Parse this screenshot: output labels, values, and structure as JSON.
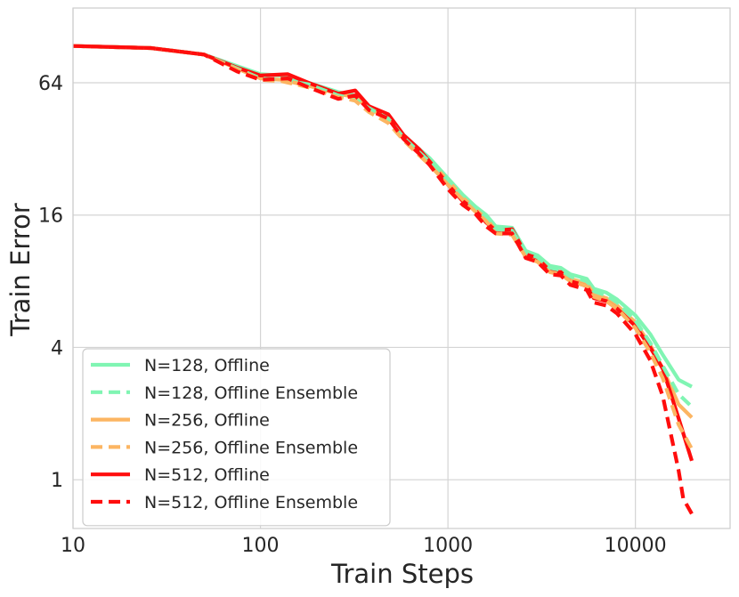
{
  "chart_data": {
    "type": "line",
    "title": "",
    "xlabel": "Train Steps",
    "ylabel": "Train Error",
    "x_scale": "log",
    "y_scale": "log2",
    "xlim": [
      10,
      32000
    ],
    "ylim": [
      0.6,
      140
    ],
    "xticks": [
      10,
      100,
      1000,
      10000
    ],
    "xtick_labels": [
      "10",
      "100",
      "1000",
      "10000"
    ],
    "yticks": [
      1,
      4,
      16,
      64
    ],
    "ytick_labels": [
      "1",
      "4",
      "16",
      "64"
    ],
    "grid": true,
    "legend_position": "lower-left",
    "series": [
      {
        "name": "N=128, Offline",
        "color": "#80f5b3",
        "dash": "solid",
        "points": [
          [
            10,
            94
          ],
          [
            26,
            92
          ],
          [
            50,
            86
          ],
          [
            100,
            70
          ],
          [
            130,
            69
          ],
          [
            180,
            64
          ],
          [
            260,
            58
          ],
          [
            320,
            56
          ],
          [
            380,
            50
          ],
          [
            480,
            45
          ],
          [
            580,
            37
          ],
          [
            700,
            32
          ],
          [
            800,
            29
          ],
          [
            1000,
            23.5
          ],
          [
            1200,
            19.8
          ],
          [
            1400,
            17.5
          ],
          [
            1600,
            16
          ],
          [
            1800,
            14.2
          ],
          [
            2200,
            14
          ],
          [
            2600,
            11
          ],
          [
            3000,
            10.5
          ],
          [
            3500,
            9.4
          ],
          [
            4000,
            9.2
          ],
          [
            4500,
            8.6
          ],
          [
            5000,
            8.4
          ],
          [
            5500,
            8.2
          ],
          [
            6000,
            7.4
          ],
          [
            7000,
            7.1
          ],
          [
            8000,
            6.6
          ],
          [
            10000,
            5.6
          ],
          [
            12000,
            4.6
          ],
          [
            14000,
            3.7
          ],
          [
            17000,
            2.85
          ],
          [
            20000,
            2.65
          ]
        ]
      },
      {
        "name": "N=128, Offline Ensemble",
        "color": "#80f5b3",
        "dash": "dashed",
        "points": [
          [
            10,
            94
          ],
          [
            26,
            92
          ],
          [
            50,
            86
          ],
          [
            100,
            67
          ],
          [
            130,
            66
          ],
          [
            180,
            63
          ],
          [
            260,
            56
          ],
          [
            320,
            54
          ],
          [
            380,
            49
          ],
          [
            480,
            44
          ],
          [
            580,
            36
          ],
          [
            700,
            31
          ],
          [
            800,
            28
          ],
          [
            1000,
            23
          ],
          [
            1200,
            19.4
          ],
          [
            1400,
            17.2
          ],
          [
            1600,
            15.6
          ],
          [
            1800,
            13.8
          ],
          [
            2200,
            13.6
          ],
          [
            2600,
            10.8
          ],
          [
            3000,
            10.3
          ],
          [
            3500,
            9.2
          ],
          [
            4000,
            9
          ],
          [
            4500,
            8.4
          ],
          [
            5000,
            8.2
          ],
          [
            5500,
            8
          ],
          [
            6000,
            7.2
          ],
          [
            7000,
            6.9
          ],
          [
            8000,
            6.4
          ],
          [
            10000,
            5.3
          ],
          [
            12000,
            4.2
          ],
          [
            14000,
            3.3
          ],
          [
            17000,
            2.45
          ],
          [
            20000,
            2.15
          ]
        ]
      },
      {
        "name": "N=256, Offline",
        "color": "#fcb562",
        "dash": "solid",
        "points": [
          [
            10,
            94
          ],
          [
            26,
            92
          ],
          [
            50,
            86
          ],
          [
            100,
            67
          ],
          [
            130,
            66
          ],
          [
            180,
            62
          ],
          [
            260,
            57
          ],
          [
            320,
            55
          ],
          [
            380,
            49
          ],
          [
            480,
            44
          ],
          [
            580,
            36
          ],
          [
            700,
            31
          ],
          [
            800,
            28
          ],
          [
            1000,
            23
          ],
          [
            1200,
            19.2
          ],
          [
            1400,
            17
          ],
          [
            1600,
            15.4
          ],
          [
            1800,
            13.6
          ],
          [
            2200,
            13.4
          ],
          [
            2600,
            10.6
          ],
          [
            3000,
            10.1
          ],
          [
            3500,
            9
          ],
          [
            4000,
            8.8
          ],
          [
            4500,
            8.2
          ],
          [
            5000,
            8
          ],
          [
            5500,
            7.8
          ],
          [
            6000,
            7
          ],
          [
            7000,
            6.7
          ],
          [
            8000,
            6.2
          ],
          [
            10000,
            5.2
          ],
          [
            12000,
            4.1
          ],
          [
            14000,
            3.2
          ],
          [
            17000,
            2.2
          ],
          [
            20000,
            1.92
          ]
        ]
      },
      {
        "name": "N=256, Offline Ensemble",
        "color": "#fcb562",
        "dash": "dashed",
        "points": [
          [
            10,
            94
          ],
          [
            26,
            92
          ],
          [
            50,
            86
          ],
          [
            100,
            66
          ],
          [
            130,
            65
          ],
          [
            180,
            61
          ],
          [
            260,
            55
          ],
          [
            320,
            53
          ],
          [
            380,
            47
          ],
          [
            480,
            42
          ],
          [
            580,
            35
          ],
          [
            700,
            30
          ],
          [
            800,
            27
          ],
          [
            1000,
            22
          ],
          [
            1200,
            18.8
          ],
          [
            1400,
            16.6
          ],
          [
            1600,
            15
          ],
          [
            1800,
            13.2
          ],
          [
            2200,
            13
          ],
          [
            2600,
            10.3
          ],
          [
            3000,
            9.8
          ],
          [
            3500,
            8.8
          ],
          [
            4000,
            8.6
          ],
          [
            4500,
            8
          ],
          [
            5000,
            7.8
          ],
          [
            5500,
            7.6
          ],
          [
            6000,
            6.8
          ],
          [
            7000,
            6.5
          ],
          [
            8000,
            6
          ],
          [
            10000,
            4.9
          ],
          [
            12000,
            3.8
          ],
          [
            14000,
            2.9
          ],
          [
            17000,
            1.78
          ],
          [
            20000,
            1.38
          ]
        ]
      },
      {
        "name": "N=512, Offline",
        "color": "#ff0d0d",
        "dash": "solid",
        "points": [
          [
            10,
            94
          ],
          [
            26,
            92
          ],
          [
            50,
            86
          ],
          [
            75,
            75
          ],
          [
            100,
            69
          ],
          [
            140,
            70
          ],
          [
            180,
            64
          ],
          [
            260,
            57
          ],
          [
            320,
            59
          ],
          [
            380,
            50
          ],
          [
            480,
            46
          ],
          [
            580,
            37
          ],
          [
            700,
            32
          ],
          [
            800,
            28
          ],
          [
            1000,
            22
          ],
          [
            1200,
            18.5
          ],
          [
            1400,
            16.8
          ],
          [
            1600,
            14.8
          ],
          [
            1800,
            13.6
          ],
          [
            2200,
            13.8
          ],
          [
            2600,
            10.6
          ],
          [
            3000,
            10.2
          ],
          [
            3500,
            8.9
          ],
          [
            4000,
            8.8
          ],
          [
            4500,
            8
          ],
          [
            5000,
            7.8
          ],
          [
            5500,
            7.6
          ],
          [
            6000,
            6.7
          ],
          [
            7000,
            6.5
          ],
          [
            8000,
            6
          ],
          [
            10000,
            5
          ],
          [
            12000,
            4
          ],
          [
            14000,
            3.2
          ],
          [
            17000,
            1.9
          ],
          [
            20000,
            1.22
          ]
        ]
      },
      {
        "name": "N=512, Offline Ensemble",
        "color": "#ff0d0d",
        "dash": "dashed",
        "points": [
          [
            10,
            94
          ],
          [
            26,
            92
          ],
          [
            50,
            86
          ],
          [
            75,
            72
          ],
          [
            100,
            66
          ],
          [
            140,
            67
          ],
          [
            180,
            61
          ],
          [
            260,
            54
          ],
          [
            320,
            56
          ],
          [
            380,
            48
          ],
          [
            480,
            44
          ],
          [
            580,
            35.5
          ],
          [
            700,
            30.5
          ],
          [
            800,
            27
          ],
          [
            1000,
            21
          ],
          [
            1200,
            17.8
          ],
          [
            1400,
            16.2
          ],
          [
            1600,
            14.2
          ],
          [
            1800,
            13.2
          ],
          [
            2200,
            13.2
          ],
          [
            2600,
            10.2
          ],
          [
            3000,
            9.8
          ],
          [
            3500,
            8.6
          ],
          [
            4000,
            8.5
          ],
          [
            4500,
            7.7
          ],
          [
            5000,
            7.5
          ],
          [
            5500,
            7.3
          ],
          [
            6000,
            6.4
          ],
          [
            7000,
            6.2
          ],
          [
            8000,
            5.7
          ],
          [
            10000,
            4.6
          ],
          [
            12000,
            3.5
          ],
          [
            14000,
            2.4
          ],
          [
            17000,
            1.1
          ],
          [
            18000,
            0.82
          ],
          [
            20000,
            0.7
          ]
        ]
      }
    ]
  }
}
